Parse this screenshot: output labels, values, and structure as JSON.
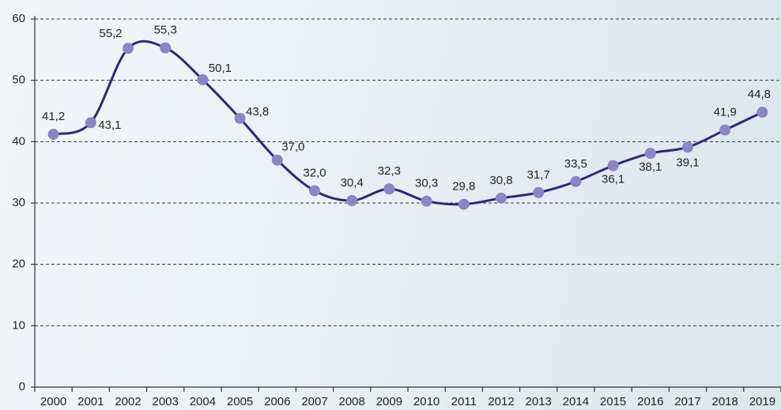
{
  "chart_data": {
    "type": "line",
    "categories": [
      "2000",
      "2001",
      "2002",
      "2003",
      "2004",
      "2005",
      "2006",
      "2007",
      "2008",
      "2009",
      "2010",
      "2011",
      "2012",
      "2013",
      "2014",
      "2015",
      "2016",
      "2017",
      "2018",
      "2019"
    ],
    "values": [
      41.2,
      43.1,
      55.2,
      55.3,
      50.1,
      43.8,
      37.0,
      32.0,
      30.4,
      32.3,
      30.3,
      29.8,
      30.8,
      31.7,
      33.5,
      36.1,
      38.1,
      39.1,
      41.9,
      44.8
    ],
    "value_labels": [
      "41,2",
      "43,1",
      "55,2",
      "55,3",
      "50,1",
      "43,8",
      "37,0",
      "32,0",
      "30,4",
      "32,3",
      "30,3",
      "29,8",
      "30,8",
      "31,7",
      "33,5",
      "36,1",
      "38,1",
      "39,1",
      "41,9",
      "44,8"
    ],
    "ylim": [
      0,
      60
    ],
    "yticks": [
      0,
      10,
      20,
      30,
      40,
      50,
      60
    ],
    "grid": true,
    "line_color": "#2d2878",
    "marker_color": "#8b85c6"
  }
}
